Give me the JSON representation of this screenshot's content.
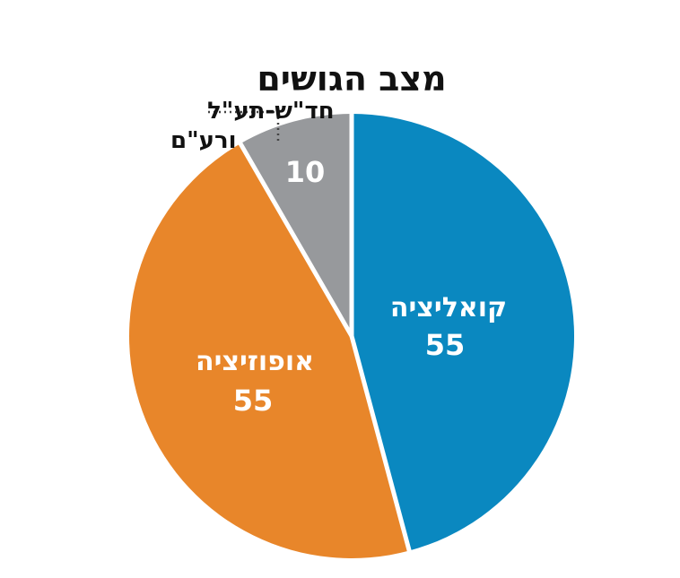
{
  "chart_data": {
    "type": "pie",
    "title": "מצב הגושים",
    "slices": [
      {
        "label": "קואליציה",
        "value": 55,
        "color": "#0a88c0"
      },
      {
        "label": "אופוזיציה",
        "value": 55,
        "color": "#e8862a"
      },
      {
        "label": "חד\"ש-תע\"ל ורע\"ם",
        "label_lines": [
          "חד\"ש-תע\"ל",
          "ורע\"ם"
        ],
        "value": 10,
        "color": "#97999c"
      }
    ],
    "total": 120,
    "start_angle_deg": 0,
    "direction": "clockwise",
    "separator_color": "#ffffff",
    "callout_line_color": "#444444"
  }
}
